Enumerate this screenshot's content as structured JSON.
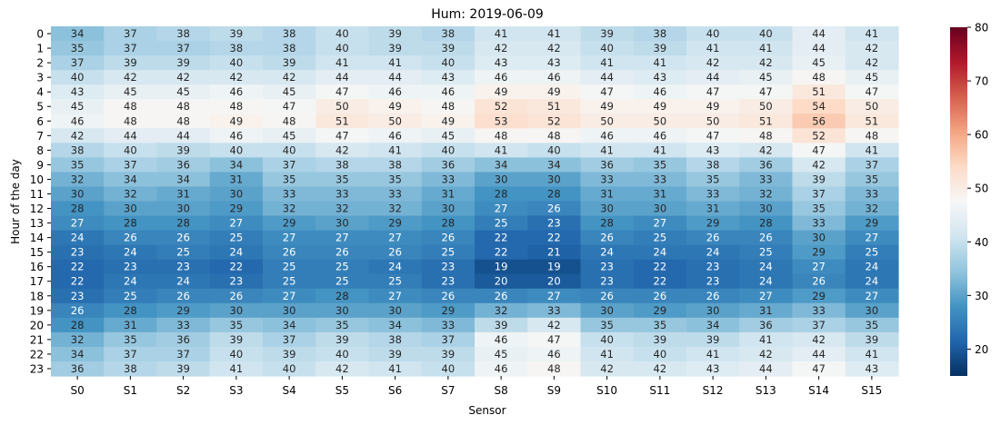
{
  "chart_data": {
    "type": "heatmap",
    "title": "Hum: 2019-06-09",
    "xlabel": "Sensor",
    "ylabel": "Hour of the day",
    "x_categories": [
      "S0",
      "S1",
      "S2",
      "S3",
      "S4",
      "S5",
      "S6",
      "S7",
      "S8",
      "S9",
      "S10",
      "S11",
      "S12",
      "S13",
      "S14",
      "S15"
    ],
    "y_categories": [
      "0",
      "1",
      "2",
      "3",
      "4",
      "5",
      "6",
      "7",
      "8",
      "9",
      "10",
      "11",
      "12",
      "13",
      "14",
      "15",
      "16",
      "17",
      "18",
      "19",
      "20",
      "21",
      "22",
      "23"
    ],
    "values": [
      [
        34,
        37,
        38,
        39,
        38,
        40,
        39,
        38,
        41,
        41,
        39,
        38,
        40,
        40,
        44,
        41
      ],
      [
        35,
        37,
        37,
        38,
        38,
        40,
        39,
        39,
        42,
        42,
        40,
        39,
        41,
        41,
        44,
        42
      ],
      [
        37,
        39,
        39,
        40,
        39,
        41,
        41,
        40,
        43,
        43,
        41,
        41,
        42,
        42,
        45,
        42
      ],
      [
        40,
        42,
        42,
        42,
        42,
        44,
        44,
        43,
        46,
        46,
        44,
        43,
        44,
        45,
        48,
        45
      ],
      [
        43,
        45,
        45,
        46,
        45,
        47,
        46,
        46,
        49,
        49,
        47,
        46,
        47,
        47,
        51,
        47
      ],
      [
        45,
        48,
        48,
        48,
        47,
        50,
        49,
        48,
        52,
        51,
        49,
        49,
        49,
        50,
        54,
        50
      ],
      [
        46,
        48,
        48,
        49,
        48,
        51,
        50,
        49,
        53,
        52,
        50,
        50,
        50,
        51,
        56,
        51
      ],
      [
        42,
        44,
        44,
        46,
        45,
        47,
        46,
        45,
        48,
        48,
        46,
        46,
        47,
        48,
        52,
        48
      ],
      [
        38,
        40,
        39,
        40,
        40,
        42,
        41,
        40,
        41,
        40,
        41,
        41,
        43,
        42,
        47,
        41
      ],
      [
        35,
        37,
        36,
        34,
        37,
        38,
        38,
        36,
        34,
        34,
        36,
        35,
        38,
        36,
        42,
        37
      ],
      [
        32,
        34,
        34,
        31,
        35,
        35,
        35,
        33,
        30,
        30,
        33,
        33,
        35,
        33,
        39,
        35
      ],
      [
        30,
        32,
        31,
        30,
        33,
        33,
        33,
        31,
        28,
        28,
        31,
        31,
        33,
        32,
        37,
        33
      ],
      [
        28,
        30,
        30,
        29,
        32,
        32,
        32,
        30,
        27,
        26,
        30,
        30,
        31,
        30,
        35,
        32
      ],
      [
        27,
        28,
        28,
        27,
        29,
        30,
        29,
        28,
        25,
        23,
        28,
        27,
        29,
        28,
        33,
        29
      ],
      [
        24,
        26,
        26,
        25,
        27,
        27,
        27,
        26,
        22,
        22,
        26,
        25,
        26,
        26,
        30,
        27
      ],
      [
        23,
        24,
        25,
        24,
        26,
        26,
        26,
        25,
        22,
        21,
        24,
        24,
        24,
        25,
        29,
        25
      ],
      [
        22,
        23,
        23,
        22,
        25,
        25,
        24,
        23,
        19,
        19,
        23,
        22,
        23,
        24,
        27,
        24
      ],
      [
        22,
        24,
        24,
        23,
        25,
        25,
        25,
        23,
        20,
        20,
        23,
        22,
        23,
        24,
        26,
        24
      ],
      [
        23,
        25,
        26,
        26,
        27,
        28,
        27,
        26,
        26,
        27,
        26,
        26,
        26,
        27,
        29,
        27
      ],
      [
        26,
        28,
        29,
        30,
        30,
        30,
        30,
        29,
        32,
        33,
        30,
        29,
        30,
        31,
        33,
        30
      ],
      [
        28,
        31,
        33,
        35,
        34,
        35,
        34,
        33,
        39,
        42,
        35,
        35,
        34,
        36,
        37,
        35
      ],
      [
        32,
        35,
        36,
        39,
        37,
        39,
        38,
        37,
        46,
        47,
        40,
        39,
        39,
        41,
        42,
        39
      ],
      [
        34,
        37,
        37,
        40,
        39,
        40,
        39,
        39,
        45,
        46,
        41,
        40,
        41,
        42,
        44,
        41
      ],
      [
        36,
        38,
        39,
        41,
        40,
        42,
        41,
        40,
        46,
        48,
        42,
        42,
        43,
        44,
        47,
        43
      ]
    ],
    "colorbar": {
      "vmin": 15,
      "vmax": 80,
      "ticks": [
        20,
        30,
        40,
        50,
        60,
        70,
        80
      ],
      "colormap": "RdBu_r"
    },
    "annotated": true
  }
}
